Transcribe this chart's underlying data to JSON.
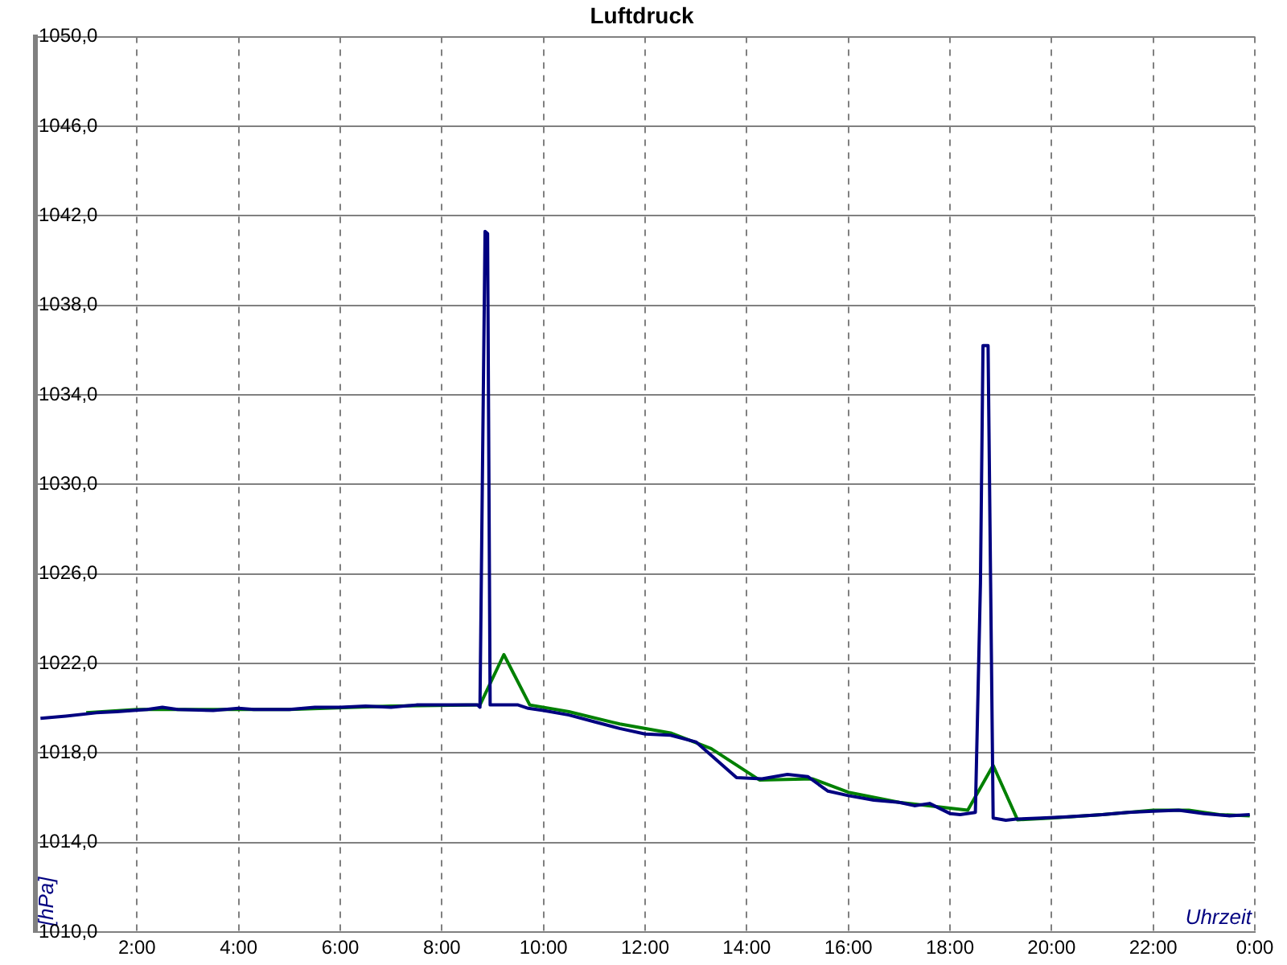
{
  "chart_data": {
    "type": "line",
    "title": "Luftdruck",
    "xlabel": "Uhrzeit",
    "ylabel": "[hPa]",
    "xlim": [
      0,
      24
    ],
    "xticks": [
      {
        "value": 0,
        "label": null
      },
      {
        "value": 2,
        "label": "2:00"
      },
      {
        "value": 4,
        "label": "4:00"
      },
      {
        "value": 6,
        "label": "6:00"
      },
      {
        "value": 8,
        "label": "8:00"
      },
      {
        "value": 10,
        "label": "10:00"
      },
      {
        "value": 12,
        "label": "12:00"
      },
      {
        "value": 14,
        "label": "14:00"
      },
      {
        "value": 16,
        "label": "16:00"
      },
      {
        "value": 18,
        "label": "18:00"
      },
      {
        "value": 20,
        "label": "20:00"
      },
      {
        "value": 22,
        "label": "22:00"
      },
      {
        "value": 24,
        "label": "0:00"
      }
    ],
    "ylim": [
      1010,
      1050
    ],
    "yticks": [
      {
        "value": 1010,
        "label": "1010,0"
      },
      {
        "value": 1014,
        "label": "1014,0"
      },
      {
        "value": 1018,
        "label": "1018,0"
      },
      {
        "value": 1022,
        "label": "1022,0"
      },
      {
        "value": 1026,
        "label": "1026,0"
      },
      {
        "value": 1030,
        "label": "1030,0"
      },
      {
        "value": 1034,
        "label": "1034,0"
      },
      {
        "value": 1038,
        "label": "1038,0"
      },
      {
        "value": 1042,
        "label": "1042,0"
      },
      {
        "value": 1046,
        "label": "1046,0"
      },
      {
        "value": 1050,
        "label": "1050,0"
      }
    ],
    "grid": true,
    "legend": false,
    "marker": "none",
    "line_style": "solid",
    "series": [
      {
        "color": "#000080",
        "x": [
          0.1,
          0.6,
          1.2,
          1.6,
          2.2,
          2.5,
          2.8,
          3.5,
          4.0,
          4.3,
          5.0,
          5.5,
          6.0,
          6.5,
          7.0,
          7.5,
          8.0,
          8.7,
          8.75,
          8.8,
          8.85,
          8.9,
          8.95,
          9.5,
          9.7,
          10.0,
          10.5,
          11.0,
          11.5,
          12.0,
          12.5,
          13.0,
          13.4,
          13.8,
          14.3,
          14.8,
          15.2,
          15.6,
          16.0,
          16.5,
          17.0,
          17.3,
          17.6,
          18.0,
          18.2,
          18.5,
          18.6,
          18.65,
          18.75,
          18.8,
          18.85,
          19.1,
          19.3,
          19.8,
          20.3,
          21.0,
          21.5,
          22.0,
          22.5,
          23.0,
          23.5,
          23.9
        ],
        "values": [
          1019.55,
          1019.65,
          1019.8,
          1019.85,
          1019.95,
          1020.05,
          1019.95,
          1019.9,
          1020.0,
          1019.95,
          1019.95,
          1020.05,
          1020.05,
          1020.1,
          1020.05,
          1020.15,
          1020.15,
          1020.15,
          1020.05,
          1030.8,
          1041.3,
          1041.2,
          1020.15,
          1020.15,
          1020.0,
          1019.9,
          1019.7,
          1019.4,
          1019.1,
          1018.85,
          1018.8,
          1018.5,
          1017.7,
          1016.9,
          1016.85,
          1017.05,
          1016.95,
          1016.3,
          1016.1,
          1015.9,
          1015.8,
          1015.65,
          1015.75,
          1015.3,
          1015.25,
          1015.35,
          1025.6,
          1036.2,
          1036.2,
          1025.6,
          1015.1,
          1015.0,
          1015.05,
          1015.1,
          1015.15,
          1015.25,
          1015.35,
          1015.4,
          1015.45,
          1015.3,
          1015.2,
          1015.25
        ]
      },
      {
        "color": "#008000",
        "x": [
          1.0,
          2.0,
          5.0,
          7.0,
          8.75,
          9.22,
          9.73,
          10.5,
          11.5,
          12.5,
          13.3,
          14.25,
          15.3,
          16.0,
          17.0,
          18.35,
          18.85,
          19.33,
          20.0,
          21.0,
          22.0,
          22.7,
          23.3,
          23.9
        ],
        "values": [
          1019.8,
          1019.95,
          1019.95,
          1020.1,
          1020.15,
          1022.4,
          1020.15,
          1019.85,
          1019.3,
          1018.9,
          1018.2,
          1016.8,
          1016.85,
          1016.25,
          1015.8,
          1015.45,
          1017.45,
          1015.02,
          1015.1,
          1015.25,
          1015.45,
          1015.45,
          1015.25,
          1015.2
        ]
      }
    ]
  }
}
